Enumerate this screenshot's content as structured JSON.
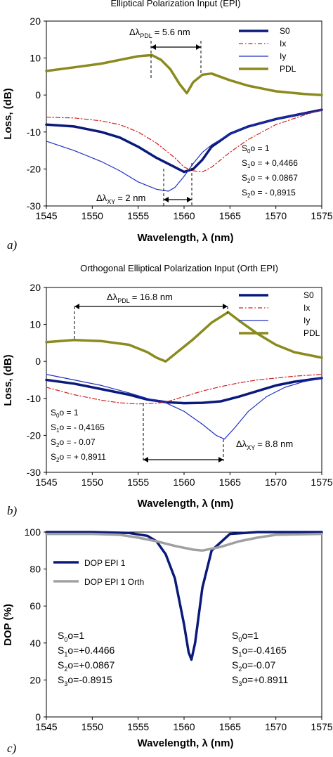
{
  "chart_data": [
    {
      "type": "line",
      "panel_label": "a)",
      "title": "Elliptical Polarization Input (EPI)",
      "xlabel": "Wavelength, λ (nm)",
      "ylabel": "Loss, (dB)",
      "xlim": [
        1545,
        1575
      ],
      "ylim": [
        -30,
        20
      ],
      "x_ticks": [
        "1545",
        "1550",
        "1555",
        "1560",
        "1565",
        "1570",
        "1575"
      ],
      "y_ticks": [
        "20",
        "10",
        "0",
        "-10",
        "-20",
        "-30"
      ],
      "legend_position": "top-right",
      "series": [
        {
          "name": "S0",
          "color": "#0a1a7a",
          "width": 3.5,
          "x": [
            1545,
            1548,
            1551,
            1553,
            1555,
            1557,
            1559,
            1560,
            1561,
            1562,
            1563,
            1565,
            1567,
            1570,
            1573,
            1575
          ],
          "y": [
            -8,
            -8.5,
            -10,
            -11.5,
            -14,
            -17,
            -19.5,
            -20.8,
            -20,
            -17.5,
            -14,
            -10.5,
            -8.5,
            -6.5,
            -5,
            -4
          ]
        },
        {
          "name": "Ix",
          "color": "#d42020",
          "width": 1.2,
          "dash": "6 3 1.5 3",
          "x": [
            1545,
            1548,
            1551,
            1553,
            1555,
            1557,
            1559,
            1560,
            1561,
            1562,
            1563,
            1565,
            1567,
            1570,
            1573,
            1575
          ],
          "y": [
            -6,
            -6.2,
            -7,
            -8,
            -10,
            -13,
            -17,
            -19.5,
            -20.5,
            -20.8,
            -19.5,
            -15.5,
            -12,
            -8,
            -5.5,
            -4
          ]
        },
        {
          "name": "Iy",
          "color": "#2030c0",
          "width": 1.2,
          "x": [
            1545,
            1548,
            1551,
            1553,
            1555,
            1557,
            1558.3,
            1559,
            1560,
            1561,
            1562,
            1563,
            1565,
            1567,
            1570,
            1573,
            1575
          ],
          "y": [
            -12.5,
            -15,
            -18,
            -20.5,
            -23.5,
            -25.5,
            -26,
            -25,
            -22,
            -18.5,
            -15.5,
            -13.5,
            -10.5,
            -8.5,
            -6.5,
            -5,
            -4.2
          ]
        },
        {
          "name": "PDL",
          "color": "#8a8a1e",
          "width": 3.5,
          "x": [
            1545,
            1548,
            1551,
            1553,
            1555,
            1556.5,
            1557.5,
            1558.5,
            1559.5,
            1560.3,
            1561,
            1562,
            1563,
            1565,
            1567,
            1570,
            1573,
            1575
          ],
          "y": [
            6.5,
            7.5,
            8.5,
            9.5,
            10.5,
            10.8,
            9.5,
            7,
            3,
            0.5,
            3.5,
            5.5,
            5.8,
            4,
            2.5,
            1,
            0.3,
            0
          ]
        }
      ],
      "annotations": {
        "pdl_label": "Δλ",
        "pdl_sub": "PDL",
        "pdl_value": "= 5.6 nm",
        "xy_label": "Δλ",
        "xy_sub": "XY",
        "xy_value": "= 2 nm",
        "stokes": [
          {
            "base": "S",
            "sub": "0",
            "rest": "o = 1"
          },
          {
            "base": "S",
            "sub": "1",
            "rest": "o = + 0,4466"
          },
          {
            "base": "S",
            "sub": "2",
            "rest": "o = + 0.0867"
          },
          {
            "base": "S",
            "sub": "2",
            "rest": "o = - 0,8915"
          }
        ]
      }
    },
    {
      "type": "line",
      "panel_label": "b)",
      "title": "Orthogonal Elliptical Polarization Input (Orth EPI)",
      "xlabel": "Wavelength, λ (nm)",
      "ylabel": "Loss, (dB)",
      "xlim": [
        1545,
        1575
      ],
      "ylim": [
        -30,
        20
      ],
      "x_ticks": [
        "1545",
        "1550",
        "1555",
        "1560",
        "1565",
        "1570",
        "1575"
      ],
      "y_ticks": [
        "20",
        "10",
        "0",
        "-10",
        "-20",
        "-30"
      ],
      "legend_position": "top-right",
      "series": [
        {
          "name": "S0",
          "color": "#0a1a7a",
          "width": 3.5,
          "x": [
            1545,
            1548,
            1551,
            1554,
            1556,
            1558,
            1560,
            1562,
            1564,
            1566,
            1568,
            1570,
            1572,
            1575
          ],
          "y": [
            -5,
            -6,
            -7.5,
            -9,
            -10.3,
            -11,
            -11.3,
            -11.2,
            -10.8,
            -9.5,
            -8,
            -6.5,
            -5.5,
            -4.5
          ]
        },
        {
          "name": "Ix",
          "color": "#d42020",
          "width": 1.2,
          "dash": "6 3 1.5 3",
          "x": [
            1545,
            1548,
            1551,
            1553,
            1555,
            1557,
            1558,
            1560,
            1562,
            1564,
            1566,
            1568,
            1570,
            1572,
            1575
          ],
          "y": [
            -7,
            -9,
            -10.5,
            -11.2,
            -11.5,
            -11.3,
            -11,
            -9.5,
            -8,
            -6.8,
            -5.8,
            -5,
            -4.5,
            -4,
            -3.5
          ]
        },
        {
          "name": "Iy",
          "color": "#2030c0",
          "width": 1.2,
          "x": [
            1545,
            1548,
            1551,
            1554,
            1556,
            1558,
            1560,
            1562,
            1563.5,
            1564.4,
            1565.5,
            1567,
            1569,
            1571,
            1573,
            1575
          ],
          "y": [
            -3.5,
            -5,
            -6.5,
            -8.5,
            -10,
            -11.2,
            -13.5,
            -17,
            -20,
            -21,
            -18,
            -13.5,
            -9.5,
            -7,
            -5.5,
            -4.5
          ]
        },
        {
          "name": "PDL",
          "color": "#8a8a1e",
          "width": 3.5,
          "x": [
            1545,
            1548,
            1551,
            1554,
            1556,
            1557,
            1558,
            1559,
            1561,
            1563,
            1564.8,
            1566,
            1568,
            1570,
            1572,
            1575
          ],
          "y": [
            5.2,
            5.8,
            5.5,
            4.5,
            2.5,
            1,
            0,
            2,
            6,
            10.5,
            13.3,
            11,
            7.5,
            4.5,
            2.5,
            1
          ]
        }
      ],
      "annotations": {
        "pdl_label": "Δλ",
        "pdl_sub": "PDL",
        "pdl_value": "= 16.8 nm",
        "xy_label": "Δλ",
        "xy_sub": "XY",
        "xy_value": "= 8.8 nm",
        "stokes": [
          {
            "base": "S",
            "sub": "0",
            "rest": "o = 1"
          },
          {
            "base": "S",
            "sub": "1",
            "rest": "o = - 0,4165"
          },
          {
            "base": "S",
            "sub": "2",
            "rest": "o = - 0.07"
          },
          {
            "base": "S",
            "sub": "2",
            "rest": "o = + 0,8911"
          }
        ]
      }
    },
    {
      "type": "line",
      "panel_label": "c)",
      "title": "",
      "xlabel": "Wavelength, λ (nm)",
      "ylabel": "DOP (%)",
      "xlim": [
        1545,
        1575
      ],
      "ylim": [
        0,
        100
      ],
      "x_ticks": [
        "1545",
        "1550",
        "1555",
        "1560",
        "1565",
        "1570",
        "1575"
      ],
      "y_ticks": [
        "100",
        "80",
        "60",
        "40",
        "20",
        "0"
      ],
      "legend_position": "top-left",
      "series": [
        {
          "name": "DOP EPI 1",
          "color": "#0a1a7a",
          "width": 3.5,
          "x": [
            1545,
            1550,
            1554,
            1556,
            1557,
            1558,
            1559,
            1560,
            1560.5,
            1560.8,
            1561.2,
            1562,
            1563,
            1565,
            1568,
            1575
          ],
          "y": [
            100,
            100,
            99.5,
            98,
            95,
            88,
            75,
            50,
            35,
            31,
            40,
            70,
            90,
            99,
            100,
            100
          ]
        },
        {
          "name": "DOP EPI 1 Orth",
          "color": "#a0a0a0",
          "width": 3.5,
          "x": [
            1545,
            1550,
            1553,
            1555,
            1557,
            1559,
            1561,
            1562,
            1564,
            1566,
            1568,
            1570,
            1575
          ],
          "y": [
            99,
            99,
            98.5,
            97,
            95,
            92.5,
            90.5,
            90,
            92,
            95,
            97,
            98.5,
            99
          ]
        }
      ],
      "annotations": {
        "stokes_left": [
          {
            "base": "S",
            "sub": "0",
            "rest": "o=1"
          },
          {
            "base": "S",
            "sub": "1",
            "rest": "o=+0.4466"
          },
          {
            "base": "S",
            "sub": "2",
            "rest": "o=+0.0867"
          },
          {
            "base": "S",
            "sub": "3",
            "rest": "o=-0.8915"
          }
        ],
        "stokes_right": [
          {
            "base": "S",
            "sub": "0",
            "rest": "o=1"
          },
          {
            "base": "S",
            "sub": "1",
            "rest": "o=-0.4165"
          },
          {
            "base": "S",
            "sub": "2",
            "rest": "o=-0.07"
          },
          {
            "base": "S",
            "sub": "3",
            "rest": "o=+0.8911"
          }
        ]
      }
    }
  ]
}
